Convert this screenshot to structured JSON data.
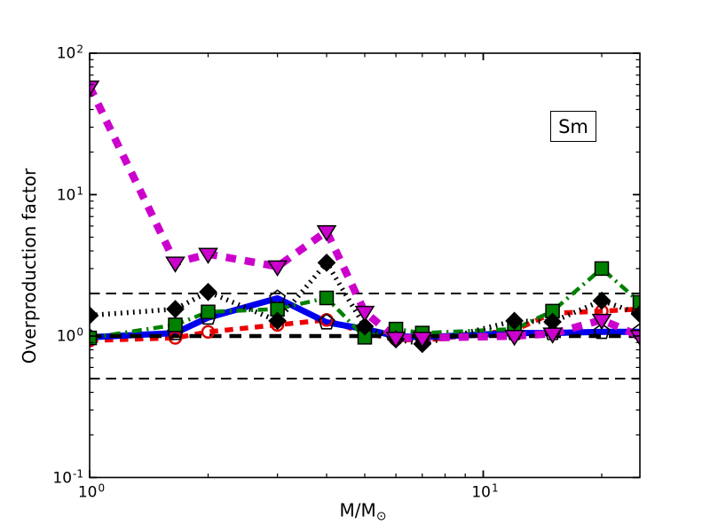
{
  "figure": {
    "element_label": "Sm",
    "ylabel": "Overproduction factor",
    "xlabel_main": "M/M",
    "xlabel_sub": "⊙"
  },
  "chart_data": {
    "type": "line",
    "xscale": "log",
    "yscale": "log",
    "xlabel": "M/M⊙",
    "ylabel": "Overproduction factor",
    "xlim": [
      1,
      25
    ],
    "ylim": [
      0.1,
      100
    ],
    "annotation_box": "Sm",
    "legend": "none",
    "x_masses": [
      1,
      1.65,
      2,
      3,
      4,
      5,
      6,
      7,
      12,
      15,
      20,
      25
    ],
    "series": [
      {
        "name": "red dashed, open circle markers",
        "color": "#EE0000",
        "line": "dashed",
        "width": 5.5,
        "dash": "9.5 7.5",
        "marker": {
          "shape": "circle",
          "fill": "none",
          "edge": "#DD0000",
          "edge_width": 2.4,
          "size": 6.5
        },
        "values": [
          0.93,
          0.97,
          1.07,
          1.2,
          1.3,
          1.05,
          0.95,
          0.93,
          1.1,
          1.45,
          1.5,
          1.55
        ]
      },
      {
        "name": "blue solid, open pentagon markers",
        "color": "#0000EE",
        "line": "solid",
        "width": 7,
        "dash": "",
        "marker": {
          "shape": "pentagon",
          "fill": "none",
          "edge": "#000000",
          "edge_width": 1.6,
          "size": 9
        },
        "values": [
          0.98,
          1.05,
          1.35,
          1.85,
          1.25,
          1.12,
          1.0,
          0.98,
          1.05,
          1.05,
          1.07,
          1.07
        ]
      },
      {
        "name": "green dash-dot, filled square markers",
        "color": "#008000",
        "line": "dashdot",
        "width": 4.5,
        "dash": "11 5.5 2.2 5.5",
        "marker": {
          "shape": "square",
          "fill": "#008000",
          "edge": "#000000",
          "edge_width": 1.5,
          "size": 7.5
        },
        "values": [
          0.97,
          1.2,
          1.48,
          1.55,
          1.86,
          0.98,
          1.12,
          1.05,
          1.12,
          1.5,
          3.0,
          1.73
        ]
      },
      {
        "name": "black dotted, filled diamond markers",
        "color": "#000000",
        "line": "dotted",
        "width": 5.5,
        "dash": "1.8 5.2",
        "marker": {
          "shape": "diamond",
          "fill": "#000000",
          "edge": "#000000",
          "edge_width": 1.2,
          "size": 9.5
        },
        "values": [
          1.4,
          1.55,
          2.05,
          1.28,
          3.3,
          1.17,
          0.95,
          0.88,
          1.28,
          1.26,
          1.78,
          1.43
        ]
      },
      {
        "name": "magenta dashed, filled down-triangle markers",
        "color": "#CC00CC",
        "line": "dashed",
        "width": 8.5,
        "dash": "11.5 10",
        "marker": {
          "shape": "triangle-down",
          "fill": "#CC00CC",
          "edge": "#000000",
          "edge_width": 1.5,
          "size": 10
        },
        "values": [
          58,
          3.3,
          3.8,
          3.1,
          5.5,
          1.48,
          0.97,
          0.97,
          1.0,
          1.04,
          1.3,
          1.0
        ]
      }
    ],
    "reference_lines": [
      {
        "y": 2,
        "weight": "thin",
        "color": "#000000"
      },
      {
        "y": 1,
        "weight": "thick",
        "color": "#000000"
      },
      {
        "y": 0.5,
        "weight": "thin",
        "color": "#000000"
      }
    ],
    "x_major_ticks": [
      {
        "value": 1,
        "exp": "0"
      },
      {
        "value": 10,
        "exp": "1"
      }
    ],
    "x_minor_ticks": [
      2,
      3,
      4,
      5,
      6,
      7,
      8,
      9,
      20
    ],
    "y_major_ticks": [
      {
        "value": 100,
        "exp": "2"
      },
      {
        "value": 10,
        "exp": "1"
      },
      {
        "value": 1,
        "exp": "0"
      },
      {
        "value": 0.1,
        "exp": "-1"
      }
    ],
    "y_minor_ticks": [
      0.2,
      0.3,
      0.4,
      0.5,
      0.6,
      0.7,
      0.8,
      0.9,
      2,
      3,
      4,
      5,
      6,
      7,
      8,
      9,
      20,
      30,
      40,
      50,
      60,
      70,
      80,
      90
    ]
  }
}
